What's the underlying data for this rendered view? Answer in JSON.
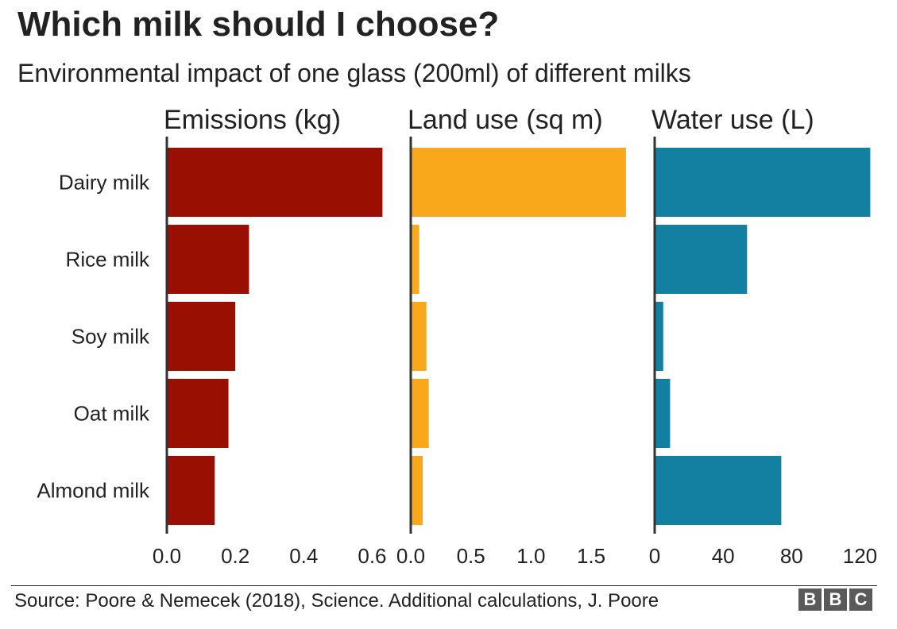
{
  "header": {
    "title": "Which milk should I choose?",
    "subtitle": "Environmental impact of one glass (200ml) of different milks"
  },
  "chart_data": {
    "type": "bar",
    "orientation": "horizontal",
    "categories": [
      "Dairy milk",
      "Rice milk",
      "Soy milk",
      "Oat milk",
      "Almond milk"
    ],
    "panels": [
      {
        "title": "Emissions (kg)",
        "color": "#990f02",
        "xlim": [
          0,
          0.65
        ],
        "ticks": [
          0,
          0.2,
          0.4,
          0.6
        ],
        "tick_labels": [
          "0.0",
          "0.2",
          "0.4",
          "0.6"
        ],
        "values": [
          0.63,
          0.24,
          0.2,
          0.18,
          0.14
        ]
      },
      {
        "title": "Land use (sq m)",
        "color": "#f9a81c",
        "xlim": [
          0,
          1.85
        ],
        "ticks": [
          0,
          0.5,
          1.0,
          1.5
        ],
        "tick_labels": [
          "0.0",
          "0.5",
          "1.0",
          "1.5"
        ],
        "values": [
          1.79,
          0.07,
          0.13,
          0.15,
          0.1
        ]
      },
      {
        "title": "Water use (L)",
        "color": "#1380a1",
        "xlim": [
          0,
          130
        ],
        "ticks": [
          0,
          40,
          80,
          120
        ],
        "tick_labels": [
          "0",
          "40",
          "80",
          "120"
        ],
        "values": [
          126,
          54,
          5,
          9,
          74
        ]
      }
    ],
    "grid": false,
    "legend": "none"
  },
  "footer": {
    "source": "Source: Poore & Nemecek (2018), Science. Additional calculations, J. Poore",
    "logo_letters": [
      "B",
      "B",
      "C"
    ]
  }
}
